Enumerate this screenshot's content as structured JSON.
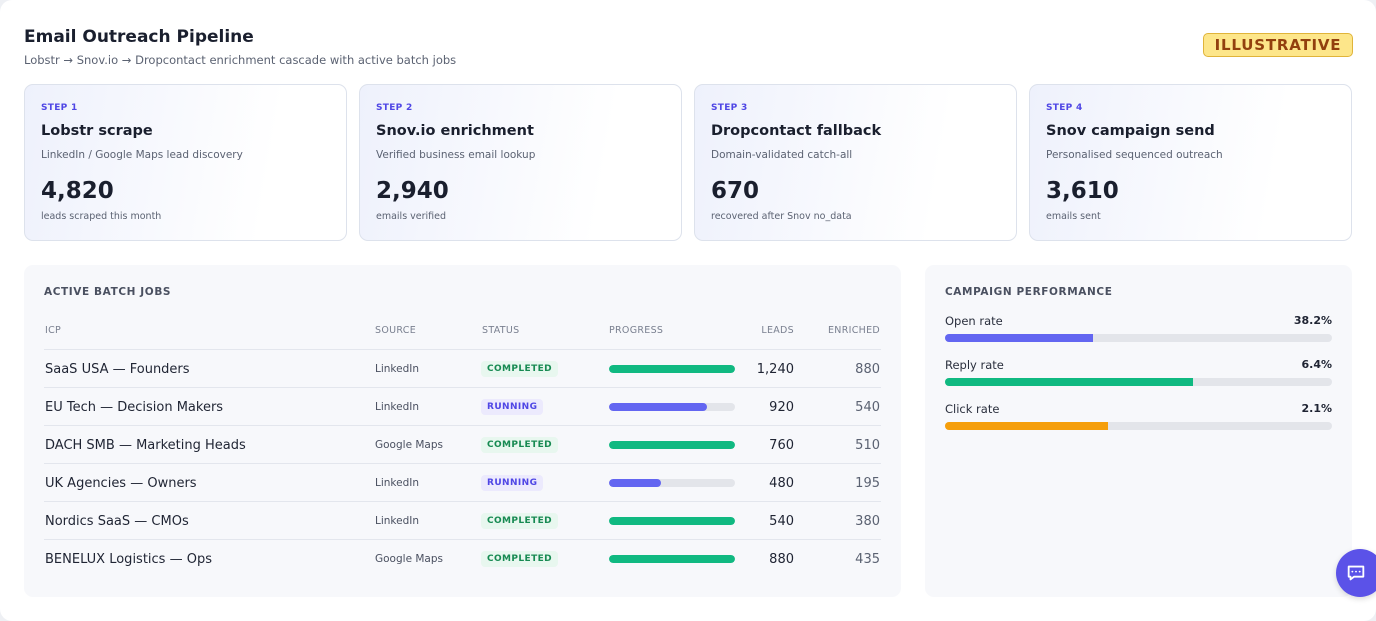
{
  "header": {
    "title": "Email Outreach Pipeline",
    "subtitle": "Lobstr → Snov.io → Dropcontact enrichment cascade with active batch jobs",
    "badge": "ILLUSTRATIVE"
  },
  "steps": [
    {
      "label": "STEP 1",
      "title": "Lobstr scrape",
      "desc": "LinkedIn / Google Maps lead discovery",
      "value": "4,820",
      "caption": "leads scraped this month"
    },
    {
      "label": "STEP 2",
      "title": "Snov.io enrichment",
      "desc": "Verified business email lookup",
      "value": "2,940",
      "caption": "emails verified"
    },
    {
      "label": "STEP 3",
      "title": "Dropcontact fallback",
      "desc": "Domain-validated catch-all",
      "value": "670",
      "caption": "recovered after Snov no_data"
    },
    {
      "label": "STEP 4",
      "title": "Snov campaign send",
      "desc": "Personalised sequenced outreach",
      "value": "3,610",
      "caption": "emails sent"
    }
  ],
  "jobs": {
    "title": "ACTIVE BATCH JOBS",
    "columns": {
      "icp": "ICP",
      "source": "SOURCE",
      "status": "STATUS",
      "progress": "PROGRESS",
      "leads": "LEADS",
      "enriched": "ENRICHED"
    },
    "rows": [
      {
        "icp": "SaaS USA — Founders",
        "source": "LinkedIn",
        "status": "COMPLETED",
        "progress": 1.0,
        "leads": "1,240",
        "enriched": "880"
      },
      {
        "icp": "EU Tech — Decision Makers",
        "source": "LinkedIn",
        "status": "RUNNING",
        "progress": 0.78,
        "leads": "920",
        "enriched": "540"
      },
      {
        "icp": "DACH SMB — Marketing Heads",
        "source": "Google Maps",
        "status": "COMPLETED",
        "progress": 1.0,
        "leads": "760",
        "enriched": "510"
      },
      {
        "icp": "UK Agencies — Owners",
        "source": "LinkedIn",
        "status": "RUNNING",
        "progress": 0.41,
        "leads": "480",
        "enriched": "195"
      },
      {
        "icp": "Nordics SaaS — CMOs",
        "source": "LinkedIn",
        "status": "COMPLETED",
        "progress": 1.0,
        "leads": "540",
        "enriched": "380"
      },
      {
        "icp": "BENELUX Logistics — Ops",
        "source": "Google Maps",
        "status": "COMPLETED",
        "progress": 1.0,
        "leads": "880",
        "enriched": "435"
      }
    ]
  },
  "campaign": {
    "title": "CAMPAIGN PERFORMANCE",
    "metrics": [
      {
        "label": "Open rate",
        "value": "38.2%",
        "fill": 0.382,
        "color": "#6366f1"
      },
      {
        "label": "Reply rate",
        "value": "6.4%",
        "fill": 0.64,
        "color": "#10b981"
      },
      {
        "label": "Click rate",
        "value": "2.1%",
        "fill": 0.42,
        "color": "#f59e0b"
      }
    ]
  },
  "colors": {
    "completed": "#10b981",
    "running": "#6366f1",
    "accent": "#4f46e5"
  },
  "icons": {
    "chat": "chat-bubble-icon"
  }
}
